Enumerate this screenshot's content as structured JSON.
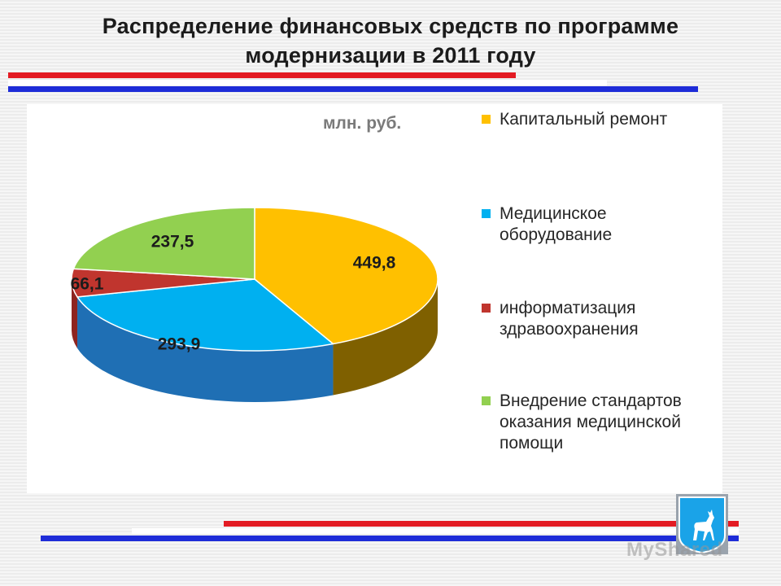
{
  "slide": {
    "title_line1": "Распределение финансовых средств по программе",
    "title_line2": "модернизации в  2011 году",
    "watermark": "MyShared"
  },
  "chart_data": {
    "type": "pie",
    "unit_label": "млн. руб.",
    "legend_position": "right",
    "slices": [
      {
        "name": "Капитальный ремонт",
        "value": 449.8,
        "label": "449,8",
        "color": "#FFC000",
        "side_color": "#7F6000"
      },
      {
        "name": "Медицинское оборудование",
        "value": 293.9,
        "label": "293,9",
        "color": "#00B0F0",
        "side_color": "#1F6FB4"
      },
      {
        "name": "информатизация здравоохранения",
        "value": 66.1,
        "label": "66,1",
        "color": "#C0352E",
        "side_color": "#8E2420"
      },
      {
        "name": "Внедрение стандартов оказания медицинской помощи",
        "value": 237.5,
        "label": "237,5",
        "color": "#92D050",
        "side_color": "#5F8A2F"
      }
    ]
  },
  "colors": {
    "stripe_red": "#E31B23",
    "stripe_blue": "#1E2CD8",
    "stripe_white": "#FFFFFF"
  },
  "icons": {
    "emblem": "samara-deer-emblem-icon"
  }
}
